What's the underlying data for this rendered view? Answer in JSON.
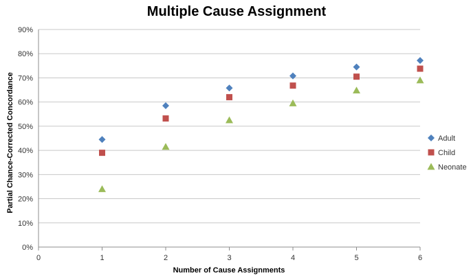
{
  "chart_data": {
    "type": "scatter",
    "title": "Multiple Cause Assignment",
    "xlabel": "Number of Cause Assignments",
    "ylabel": "Partial Chance-Corrected Concordance",
    "xlim": [
      0,
      6
    ],
    "ylim": [
      0,
      90
    ],
    "x_ticks": [
      "0",
      "1",
      "2",
      "3",
      "4",
      "5",
      "6"
    ],
    "y_ticks": [
      "0%",
      "10%",
      "20%",
      "30%",
      "40%",
      "50%",
      "60%",
      "70%",
      "80%",
      "90%"
    ],
    "grid": true,
    "legend_position": "right",
    "x": [
      1,
      2,
      3,
      4,
      5,
      6
    ],
    "series": [
      {
        "name": "Adult",
        "marker": "diamond",
        "color": "#4f81bd",
        "values": [
          44.5,
          58.5,
          65.8,
          70.8,
          74.5,
          77.2
        ]
      },
      {
        "name": "Child",
        "marker": "square",
        "color": "#c0504d",
        "values": [
          39.0,
          53.2,
          62.0,
          66.8,
          70.5,
          73.8
        ]
      },
      {
        "name": "Neonate",
        "marker": "triangle",
        "color": "#9bbb59",
        "values": [
          24.0,
          41.5,
          52.5,
          59.5,
          64.8,
          69.0
        ]
      }
    ]
  }
}
